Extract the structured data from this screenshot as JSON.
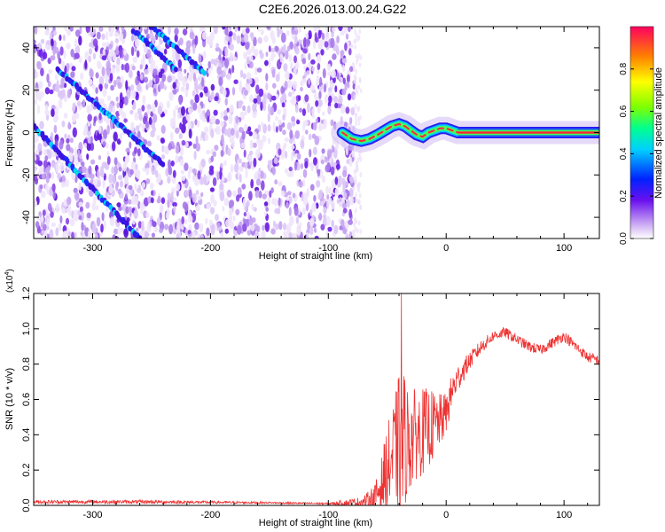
{
  "title": "C2E6.2026.013.00.24.G22",
  "chart_data": [
    {
      "type": "heatmap",
      "name": "spectrogram",
      "xlabel": "Height of straight line (km)",
      "ylabel": "Frequency (Hz)",
      "xlim": [
        -350,
        130
      ],
      "ylim": [
        -50,
        50
      ],
      "x_ticks": [
        -300,
        -200,
        -100,
        0,
        100
      ],
      "y_ticks": [
        -40,
        -20,
        0,
        20,
        40
      ],
      "x_tick_labels": [
        "-300",
        "-200",
        "-100",
        "0",
        "100"
      ],
      "y_tick_labels": [
        "-40",
        "-20",
        "0",
        "20",
        "40"
      ],
      "noise_region_x": [
        -350,
        -78
      ],
      "signal_start_x": -88,
      "traces": [
        {
          "name": "bottom-left stripe",
          "x": [
            -350,
            -260
          ],
          "y": [
            3,
            -50
          ]
        },
        {
          "name": "middle stripe",
          "x": [
            -330,
            -240
          ],
          "y": [
            30,
            -15
          ]
        },
        {
          "name": "upper stripe",
          "x": [
            -265,
            -230
          ],
          "y": [
            48,
            30
          ]
        },
        {
          "name": "top stripe",
          "x": [
            -250,
            -205
          ],
          "y": [
            50,
            28
          ]
        }
      ],
      "signal_track": {
        "x": [
          -88,
          -80,
          -72,
          -65,
          -58,
          -52,
          -46,
          -40,
          -35,
          -30,
          -25,
          -20,
          -15,
          -10,
          -5,
          0,
          5,
          10,
          20,
          40,
          60,
          80,
          100,
          130
        ],
        "y": [
          0,
          -3,
          -4,
          -3,
          -1,
          1,
          3,
          4,
          3,
          1,
          -1,
          -2,
          0,
          1,
          2,
          2,
          1,
          0,
          0,
          0,
          0,
          0,
          0,
          0
        ]
      },
      "colorbar": {
        "label": "Normalized spectral amplitude",
        "range": [
          0,
          1
        ],
        "ticks": [
          0.0,
          0.2,
          0.4,
          0.6,
          0.8
        ],
        "tick_labels": [
          "0.0",
          "0.2",
          "0.4",
          "0.6",
          "0.8"
        ]
      }
    },
    {
      "type": "line",
      "name": "snr",
      "xlabel": "Height of straight line (km)",
      "ylabel": "SNR (10 * v/v)",
      "y_multiplier_label": "(x10",
      "y_multiplier_exp": "4",
      "xlim": [
        -350,
        130
      ],
      "ylim": [
        0,
        1.2
      ],
      "x_ticks": [
        -300,
        -200,
        -100,
        0,
        100
      ],
      "y_ticks": [
        0.0,
        0.2,
        0.4,
        0.6,
        0.8,
        1.0,
        1.2
      ],
      "x_tick_labels": [
        "-300",
        "-200",
        "-100",
        "0",
        "100"
      ],
      "y_tick_labels": [
        "0.0",
        "0.2",
        "0.4",
        "0.6",
        "0.8",
        "1.0",
        "1.2"
      ],
      "color": "#ee3333",
      "series_envelope": {
        "x": [
          -350,
          -250,
          -150,
          -100,
          -70,
          -60,
          -55,
          -50,
          -45,
          -40,
          -38,
          -35,
          -30,
          -25,
          -20,
          -15,
          -10,
          -5,
          0,
          5,
          10,
          20,
          30,
          40,
          50,
          60,
          70,
          80,
          90,
          100,
          110,
          120,
          130
        ],
        "base": [
          0.02,
          0.02,
          0.015,
          0.01,
          0.02,
          0.05,
          0.12,
          0.2,
          0.28,
          0.35,
          0.4,
          0.35,
          0.38,
          0.4,
          0.42,
          0.44,
          0.45,
          0.48,
          0.52,
          0.65,
          0.72,
          0.82,
          0.9,
          0.96,
          0.98,
          0.94,
          0.9,
          0.88,
          0.92,
          0.96,
          0.9,
          0.84,
          0.82
        ],
        "amp": [
          0.01,
          0.01,
          0.005,
          0.005,
          0.03,
          0.08,
          0.15,
          0.25,
          0.3,
          0.4,
          0.8,
          0.35,
          0.3,
          0.25,
          0.25,
          0.22,
          0.2,
          0.15,
          0.12,
          0.1,
          0.08,
          0.05,
          0.04,
          0.03,
          0.03,
          0.03,
          0.03,
          0.03,
          0.03,
          0.03,
          0.03,
          0.03,
          0.03
        ]
      },
      "peak": {
        "x": -38,
        "y": 1.2
      }
    }
  ]
}
